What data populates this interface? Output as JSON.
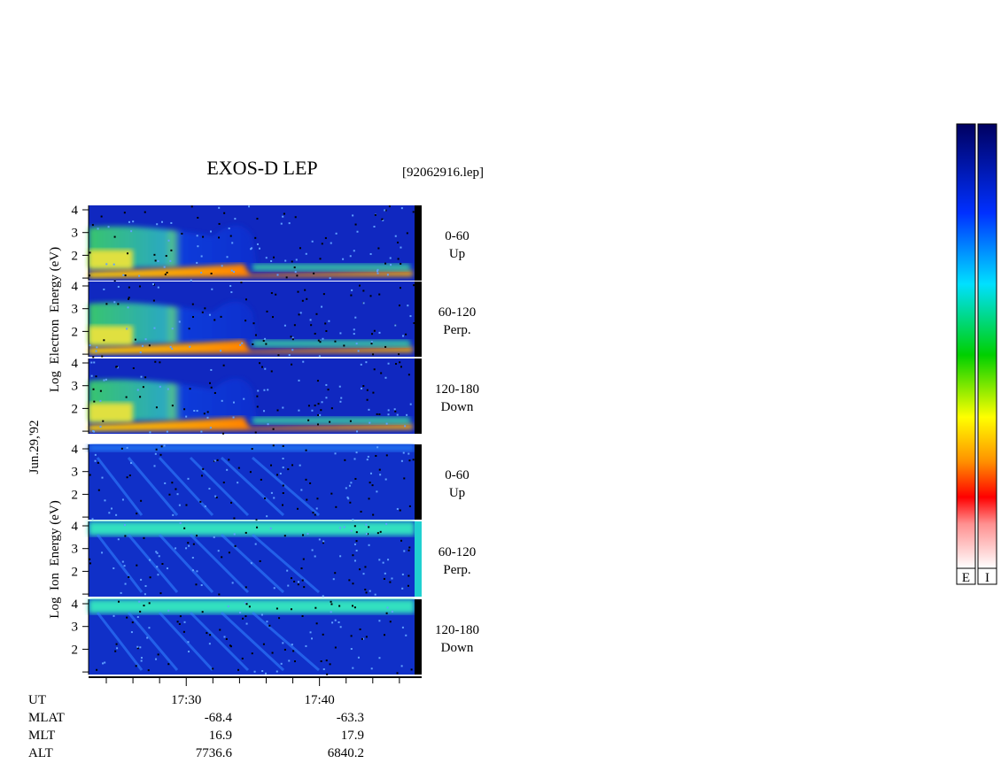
{
  "title": "EXOS-D LEP",
  "file": "[92062916.lep]",
  "date": "Jun.29,'92",
  "groups": [
    {
      "ylabel": "Log  Electron  Energy (eV)",
      "panels": [
        {
          "angle": "0-60",
          "dir": "Up"
        },
        {
          "angle": "60-120",
          "dir": "Perp."
        },
        {
          "angle": "120-180",
          "dir": "Down"
        }
      ]
    },
    {
      "ylabel": "Log  Ion  Energy (eV)",
      "panels": [
        {
          "angle": "0-60",
          "dir": "Up"
        },
        {
          "angle": "60-120",
          "dir": "Perp."
        },
        {
          "angle": "120-180",
          "dir": "Down"
        }
      ]
    }
  ],
  "yticks": [
    2,
    3,
    4
  ],
  "yminor": [
    1
  ],
  "xlim": [
    22.67,
    47.67
  ],
  "xticks": [
    {
      "value": 30,
      "label": "17:30"
    },
    {
      "value": 40,
      "label": "17:40"
    }
  ],
  "xminor": [
    24,
    26,
    28,
    32,
    34,
    36,
    38,
    42,
    44,
    46
  ],
  "table": {
    "rows": [
      [
        "UT",
        "17:30",
        "17:40"
      ],
      [
        "MLAT",
        "-68.4",
        "-63.3"
      ],
      [
        "MLT",
        "16.9",
        "17.9"
      ],
      [
        "ALT",
        "7736.6",
        "6840.2"
      ]
    ]
  },
  "colorbars": [
    "E",
    "I"
  ]
}
